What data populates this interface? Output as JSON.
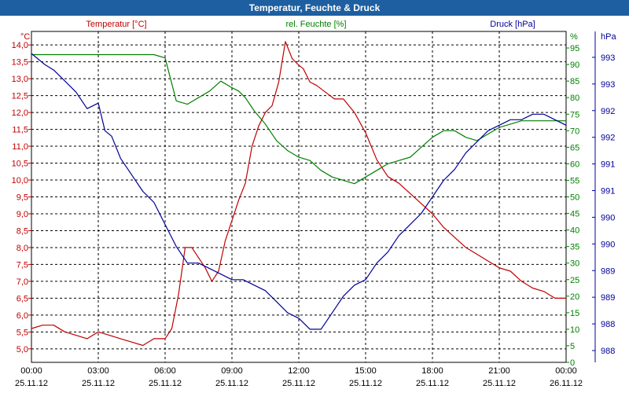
{
  "window": {
    "title": "Temperatur, Feuchte & Druck"
  },
  "colors": {
    "temperature": "#c00000",
    "humidity": "#008000",
    "pressure": "#000099",
    "title_bg": "#1d5fa0",
    "grid": "#000000"
  },
  "chart_data": {
    "type": "line",
    "grid": true,
    "x_ticks": [
      {
        "time": "00:00",
        "date": "25.11.12"
      },
      {
        "time": "03:00",
        "date": "25.11.12"
      },
      {
        "time": "06:00",
        "date": "25.11.12"
      },
      {
        "time": "09:00",
        "date": "25.11.12"
      },
      {
        "time": "12:00",
        "date": "25.11.12"
      },
      {
        "time": "15:00",
        "date": "25.11.12"
      },
      {
        "time": "18:00",
        "date": "25.11.12"
      },
      {
        "time": "21:00",
        "date": "25.11.12"
      },
      {
        "time": "00:00",
        "date": "26.11.12"
      }
    ],
    "axes": {
      "temperature": {
        "unit": "°C",
        "legend": "Temperatur [°C]",
        "range": [
          4.6,
          14.4
        ],
        "ticks": [
          "5,0",
          "5,5",
          "6,0",
          "6,5",
          "7,0",
          "7,5",
          "8,0",
          "8,5",
          "9,0",
          "9,5",
          "10,0",
          "10,5",
          "11,0",
          "11,5",
          "12,0",
          "12,5",
          "13,0",
          "13,5",
          "14,0"
        ]
      },
      "humidity": {
        "unit": "%",
        "legend": "rel. Feuchte [%]",
        "range": [
          0,
          100
        ],
        "ticks": [
          "0",
          "5",
          "10",
          "15",
          "20",
          "25",
          "30",
          "35",
          "40",
          "45",
          "50",
          "55",
          "60",
          "65",
          "70",
          "75",
          "80",
          "85",
          "90",
          "95"
        ]
      },
      "pressure": {
        "unit": "hPa",
        "legend": "Druck [hPa]",
        "range": [
          987.5,
          993.5
        ],
        "ticks": [
          "988",
          "988",
          "989",
          "989",
          "990",
          "990",
          "991",
          "991",
          "992",
          "992",
          "993",
          "993"
        ]
      }
    },
    "series": [
      {
        "name": "Temperatur [°C]",
        "axis": "temperature",
        "x": [
          0,
          0.5,
          1,
          1.5,
          2,
          2.5,
          3,
          3.5,
          4,
          4.5,
          5,
          5.5,
          6,
          6.3,
          6.6,
          6.9,
          7.2,
          7.5,
          7.8,
          8.1,
          8.4,
          8.7,
          9,
          9.3,
          9.6,
          9.9,
          10.2,
          10.5,
          10.8,
          11.1,
          11.4,
          11.7,
          12,
          12.2,
          12.5,
          12.8,
          13.2,
          13.6,
          14,
          14.5,
          15,
          15.5,
          16,
          16.5,
          17,
          17.5,
          18,
          18.5,
          19,
          19.5,
          20,
          20.5,
          21,
          21.5,
          22,
          22.5,
          23,
          23.5,
          24
        ],
        "y": [
          5.6,
          5.7,
          5.7,
          5.5,
          5.4,
          5.3,
          5.5,
          5.4,
          5.3,
          5.2,
          5.1,
          5.3,
          5.3,
          5.6,
          6.6,
          8.0,
          8.0,
          7.7,
          7.4,
          7.0,
          7.3,
          8.2,
          8.8,
          9.4,
          9.9,
          11.0,
          11.6,
          12.0,
          12.2,
          12.9,
          14.1,
          13.6,
          13.4,
          13.3,
          12.9,
          12.8,
          12.6,
          12.4,
          12.4,
          12.0,
          11.4,
          10.6,
          10.1,
          9.9,
          9.6,
          9.3,
          9.0,
          8.6,
          8.3,
          8.0,
          7.8,
          7.6,
          7.4,
          7.3,
          7.0,
          6.8,
          6.7,
          6.5,
          6.5
        ]
      },
      {
        "name": "rel. Feuchte [%]",
        "axis": "humidity",
        "x": [
          0,
          1,
          2,
          3,
          4,
          5,
          5.5,
          6,
          6.5,
          7,
          7.5,
          8,
          8.5,
          9,
          9.3,
          9.6,
          10,
          10.5,
          11,
          11.5,
          12,
          12.5,
          13,
          13.5,
          14,
          14.5,
          15,
          15.5,
          16,
          16.5,
          17,
          17.5,
          18,
          18.5,
          19,
          19.5,
          20,
          20.5,
          21,
          21.5,
          22,
          22.5,
          23,
          23.5,
          24
        ],
        "y": [
          93,
          93,
          93,
          93,
          93,
          93,
          93,
          92,
          79,
          78,
          80,
          82,
          85,
          83,
          82,
          80,
          76,
          72,
          67,
          64,
          62,
          61,
          58,
          56,
          55,
          54,
          56,
          58,
          60,
          61,
          62,
          65,
          68,
          70,
          70,
          68,
          67,
          69,
          71,
          72,
          73,
          73,
          73,
          73,
          73
        ]
      },
      {
        "name": "Druck [hPa]",
        "axis": "pressure",
        "x": [
          0,
          0.3,
          0.6,
          1,
          1.5,
          2,
          2.5,
          3,
          3.3,
          3.6,
          4,
          4.5,
          5,
          5.5,
          6,
          6.5,
          7,
          7.5,
          8,
          8.5,
          9,
          9.5,
          10,
          10.5,
          11,
          11.5,
          12,
          12.5,
          13,
          13.5,
          14,
          14.5,
          15,
          15.5,
          16,
          16.5,
          17,
          17.5,
          18,
          18.5,
          19,
          19.5,
          20,
          20.5,
          21,
          21.5,
          22,
          22.5,
          23,
          23.5,
          24
        ],
        "y": [
          993.1,
          993.0,
          992.9,
          992.8,
          992.6,
          992.4,
          992.1,
          992.2,
          991.7,
          991.6,
          991.2,
          990.9,
          990.6,
          990.4,
          990.0,
          989.6,
          989.3,
          989.3,
          989.2,
          989.1,
          989.0,
          989.0,
          988.9,
          988.8,
          988.6,
          988.4,
          988.3,
          988.1,
          988.1,
          988.4,
          988.7,
          988.9,
          989.0,
          989.3,
          989.5,
          989.8,
          990.0,
          990.2,
          990.5,
          990.8,
          991.0,
          991.3,
          991.5,
          991.7,
          991.8,
          991.9,
          991.9,
          992.0,
          992.0,
          991.9,
          991.8
        ]
      }
    ]
  }
}
